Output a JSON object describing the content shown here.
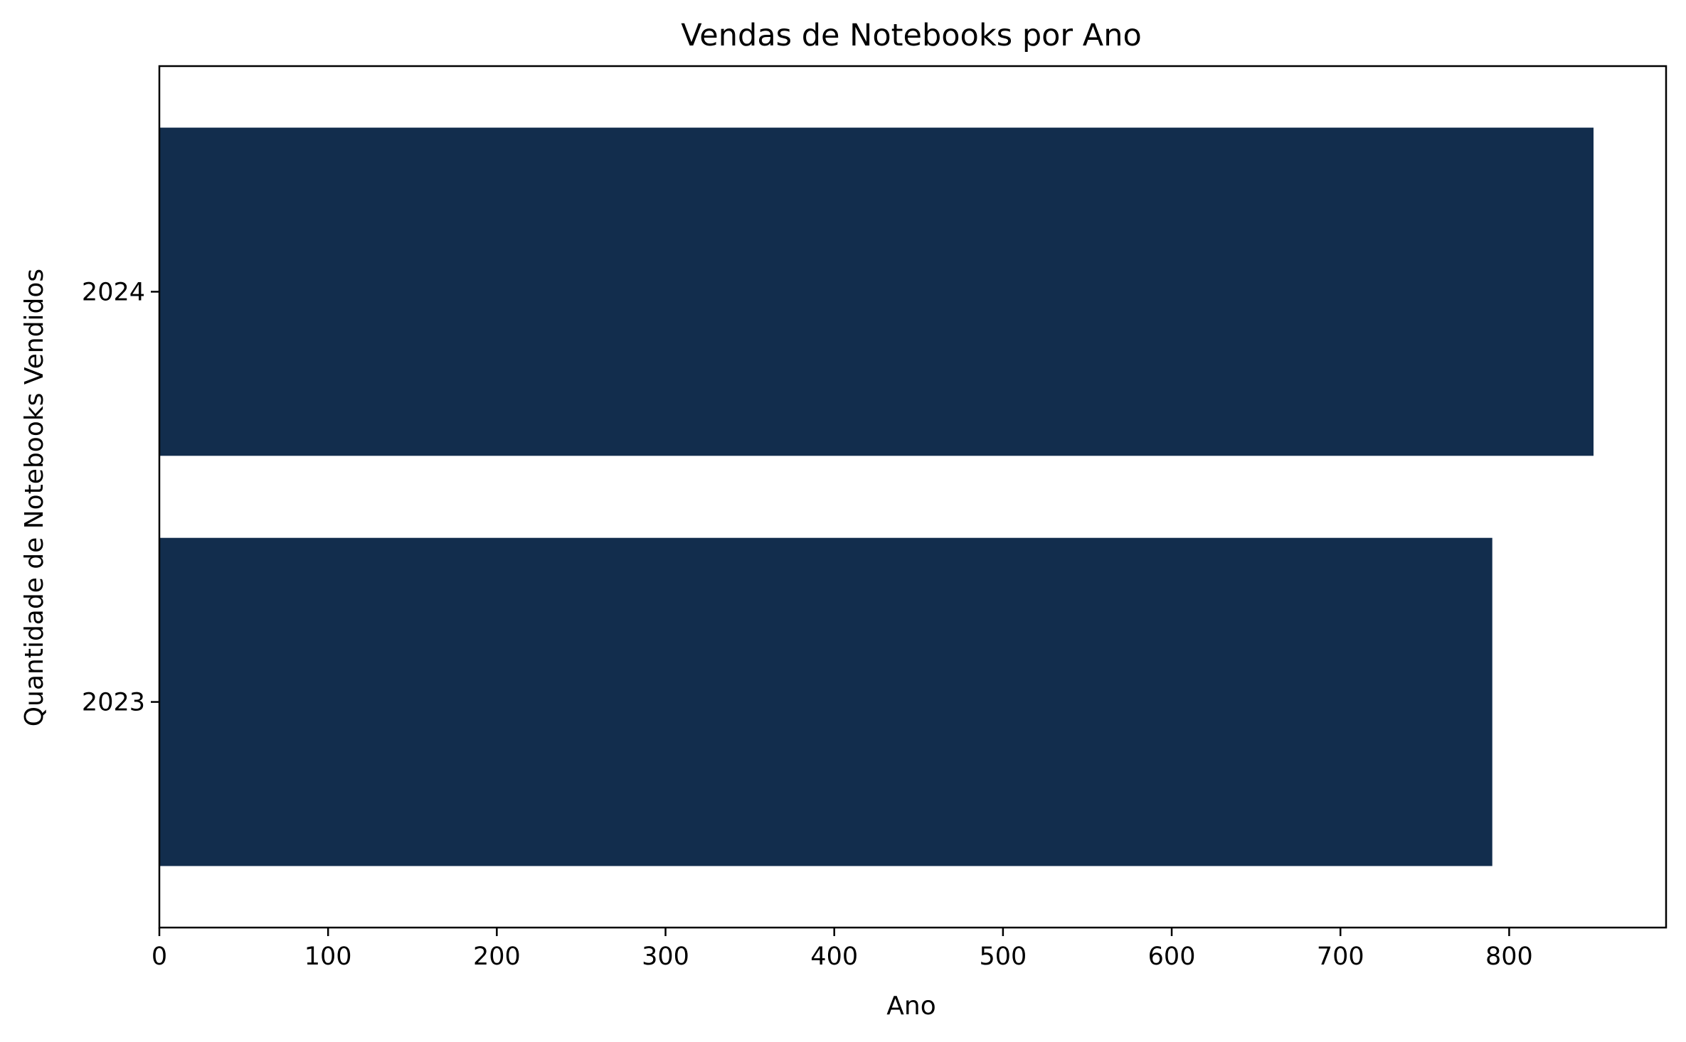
{
  "chart_data": {
    "type": "bar",
    "orientation": "horizontal",
    "title": "Vendas de Notebooks por Ano",
    "xlabel": "Ano",
    "ylabel": "Quantidade de Notebooks Vendidos",
    "categories": [
      "2023",
      "2024"
    ],
    "values": [
      790,
      850
    ],
    "xlim": [
      0,
      893
    ],
    "xticks": [
      0,
      100,
      200,
      300,
      400,
      500,
      600,
      700,
      800
    ],
    "grid": false,
    "legend": "none",
    "bar_color": "#122d4d"
  }
}
